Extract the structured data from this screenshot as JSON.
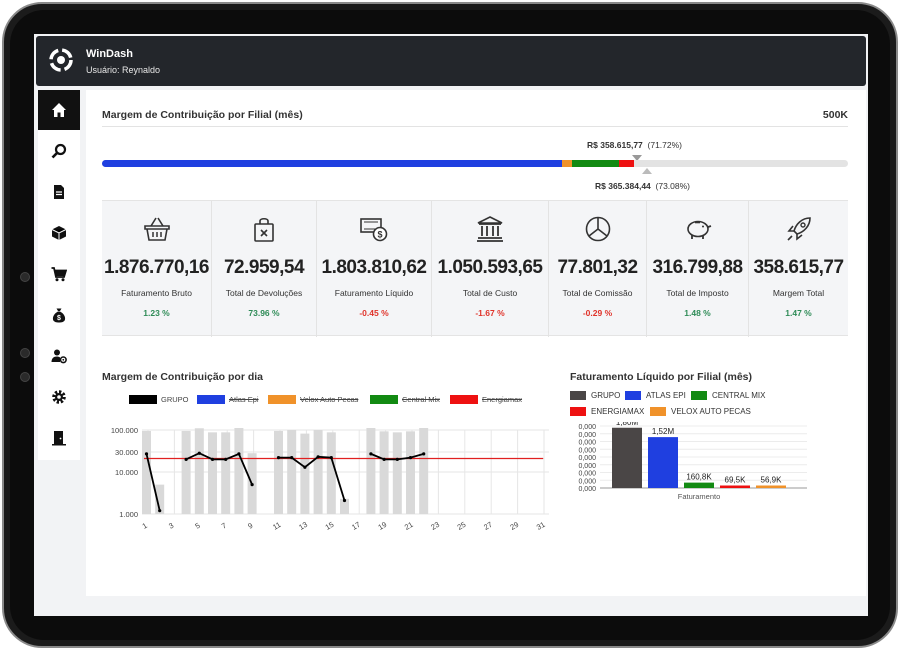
{
  "header": {
    "app_name": "WinDash",
    "user": "Usuário: Reynaldo"
  },
  "sidebar": {
    "items": [
      {
        "icon": "home-icon",
        "active": true
      },
      {
        "icon": "search-icon"
      },
      {
        "icon": "document-icon"
      },
      {
        "icon": "box-icon"
      },
      {
        "icon": "cart-icon"
      },
      {
        "icon": "money-bag-icon"
      },
      {
        "icon": "user-settings-icon"
      },
      {
        "icon": "gear-icon"
      },
      {
        "icon": "exit-door-icon"
      }
    ]
  },
  "margin_section": {
    "title": "Margem de Contribuição por Filial (mês)",
    "goal_label": "500K",
    "current_value": "R$ 358.615,77",
    "current_pct": "(71.72%)",
    "target_value": "R$ 365.384,44",
    "target_pct": "(73.08%)",
    "segments": [
      {
        "name": "Atlas Epi",
        "share": 0.617,
        "color": "#1f3fe0"
      },
      {
        "name": "Velox Auto Pecas",
        "share": 0.013,
        "color": "#f0922a"
      },
      {
        "name": "Central Mix",
        "share": 0.063,
        "color": "#128a12"
      },
      {
        "name": "Energiamax",
        "share": 0.02,
        "color": "#ee1111"
      }
    ]
  },
  "kpis": [
    {
      "icon": "basket-icon",
      "value": "1.876.770,16",
      "label": "Faturamento Bruto",
      "pct": "1.23 %",
      "trend": "up"
    },
    {
      "icon": "return-bag-icon",
      "value": "72.959,54",
      "label": "Total de Devoluções",
      "pct": "73.96 %",
      "trend": "up"
    },
    {
      "icon": "cash-icon",
      "value": "1.803.810,62",
      "label": "Faturamento Líquido",
      "pct": "-0.45 %",
      "trend": "down"
    },
    {
      "icon": "bank-icon",
      "value": "1.050.593,65",
      "label": "Total de Custo",
      "pct": "-1.67 %",
      "trend": "down"
    },
    {
      "icon": "pie-icon",
      "value": "77.801,32",
      "label": "Total de Comissão",
      "pct": "-0.29 %",
      "trend": "down"
    },
    {
      "icon": "piggy-bank-icon",
      "value": "316.799,88",
      "label": "Total de Imposto",
      "pct": "1.48 %",
      "trend": "up"
    },
    {
      "icon": "rocket-icon",
      "value": "358.615,77",
      "label": "Margem Total",
      "pct": "1.47 %",
      "trend": "up"
    }
  ],
  "colors": {
    "up": "#2e8b57",
    "down": "#e0332a"
  },
  "chart_data": [
    {
      "type": "bar",
      "title": "Margem de Contribuição por dia",
      "y_scale": "log",
      "ylim": [
        1000,
        100000
      ],
      "y_ticks": [
        "100.000",
        "30.000",
        "10.000",
        "1.000"
      ],
      "x_ticks": [
        "1",
        "3",
        "5",
        "7",
        "9",
        "11",
        "13",
        "15",
        "17",
        "19",
        "21",
        "23",
        "25",
        "27",
        "29",
        "31"
      ],
      "legend": [
        {
          "name": "GRUPO",
          "color": "#000000",
          "hidden": false
        },
        {
          "name": "Atlas Epi",
          "color": "#1f3fe0",
          "hidden": true
        },
        {
          "name": "Velox Auto Pecas",
          "color": "#f0922a",
          "hidden": true
        },
        {
          "name": "Central Mix",
          "color": "#128a12",
          "hidden": true
        },
        {
          "name": "Energiamax",
          "color": "#ee1111",
          "hidden": true
        }
      ],
      "bars": [
        {
          "x": 1,
          "v": 95000
        },
        {
          "x": 2,
          "v": 5000
        },
        {
          "x": 4,
          "v": 95000
        },
        {
          "x": 5,
          "v": 110000
        },
        {
          "x": 6,
          "v": 88000
        },
        {
          "x": 7,
          "v": 88000
        },
        {
          "x": 8,
          "v": 115000
        },
        {
          "x": 9,
          "v": 28000
        },
        {
          "x": 11,
          "v": 95000
        },
        {
          "x": 12,
          "v": 100000
        },
        {
          "x": 13,
          "v": 82000
        },
        {
          "x": 14,
          "v": 100000
        },
        {
          "x": 15,
          "v": 88000
        },
        {
          "x": 16,
          "v": 2300
        },
        {
          "x": 18,
          "v": 115000
        },
        {
          "x": 19,
          "v": 93000
        },
        {
          "x": 20,
          "v": 88000
        },
        {
          "x": 21,
          "v": 93000
        },
        {
          "x": 22,
          "v": 130000
        }
      ],
      "line_segments": [
        [
          [
            1,
            27000
          ],
          [
            2,
            1200
          ]
        ],
        [
          [
            4,
            20000
          ],
          [
            5,
            28000
          ],
          [
            6,
            20000
          ],
          [
            7,
            20000
          ],
          [
            8,
            27000
          ],
          [
            9,
            5000
          ]
        ],
        [
          [
            11,
            22000
          ],
          [
            12,
            22000
          ],
          [
            13,
            13000
          ],
          [
            14,
            23000
          ],
          [
            15,
            22000
          ],
          [
            16,
            2100
          ]
        ],
        [
          [
            18,
            27000
          ],
          [
            19,
            20000
          ],
          [
            20,
            20000
          ],
          [
            21,
            22000
          ],
          [
            22,
            27000
          ]
        ]
      ],
      "reference_line": 21000,
      "colors": {
        "bars": "#d9d9d9",
        "line": "#000000",
        "reference": "#e02020"
      }
    },
    {
      "type": "bar",
      "title": "Faturamento Líquido por Filial (mês)",
      "categories": [
        "Faturamento"
      ],
      "y_ticks": [
        "0,000",
        "0,000",
        "0,000",
        "0,000",
        "0,000",
        "0,000",
        "0,000",
        "0,000",
        "0,000"
      ],
      "ylim": [
        0,
        2000000
      ],
      "series": [
        {
          "name": "GRUPO",
          "value": 1800000,
          "label": "1,80M",
          "color": "#4a4646"
        },
        {
          "name": "ATLAS EPI",
          "value": 1520000,
          "label": "1,52M",
          "color": "#1f3fe0"
        },
        {
          "name": "CENTRAL MIX",
          "value": 160800,
          "label": "160,8K",
          "color": "#128a12"
        },
        {
          "name": "ENERGIAMAX",
          "value": 69500,
          "label": "69,5K",
          "color": "#ee1111"
        },
        {
          "name": "VELOX AUTO PECAS",
          "value": 56900,
          "label": "56,9K",
          "color": "#f0922a"
        }
      ]
    }
  ]
}
